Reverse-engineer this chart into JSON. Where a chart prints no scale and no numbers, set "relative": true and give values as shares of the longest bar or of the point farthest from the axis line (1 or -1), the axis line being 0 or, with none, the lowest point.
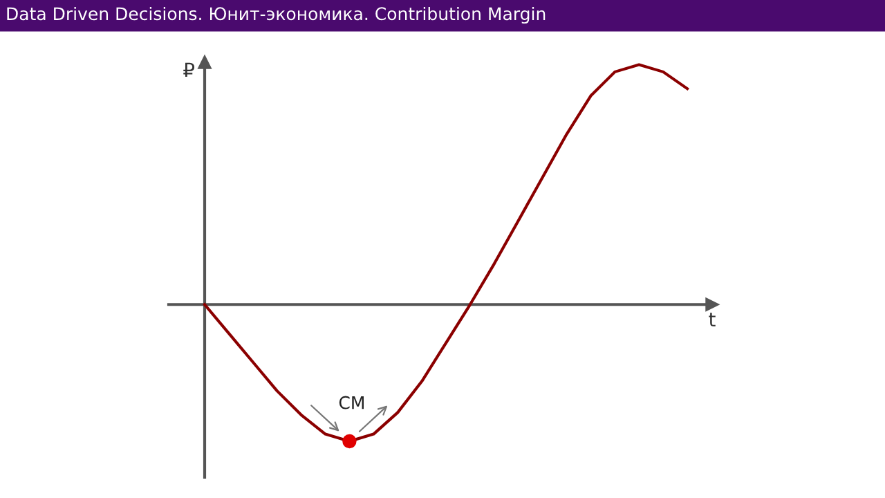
{
  "chart_data": {
    "type": "line",
    "title": "Data Driven Decisions. Юнит-экономика. Contribution Margin",
    "xlabel": "t",
    "ylabel": "₽",
    "relative": true,
    "categories": [
      null,
      null,
      null,
      null,
      null,
      null,
      null,
      null,
      null,
      null,
      null,
      null,
      null,
      null,
      null,
      null,
      null,
      null,
      null,
      null,
      null
    ],
    "series": [
      {
        "color": "#8b0000",
        "values": [
          0,
          -0.12,
          -0.24,
          -0.36,
          -0.46,
          -0.54,
          -0.57,
          -0.54,
          -0.45,
          -0.32,
          -0.16,
          0,
          0.17,
          0.35,
          0.53,
          0.71,
          0.87,
          0.97,
          1,
          0.97,
          0.9
        ]
      }
    ],
    "annotations": [
      "CM"
    ]
  }
}
